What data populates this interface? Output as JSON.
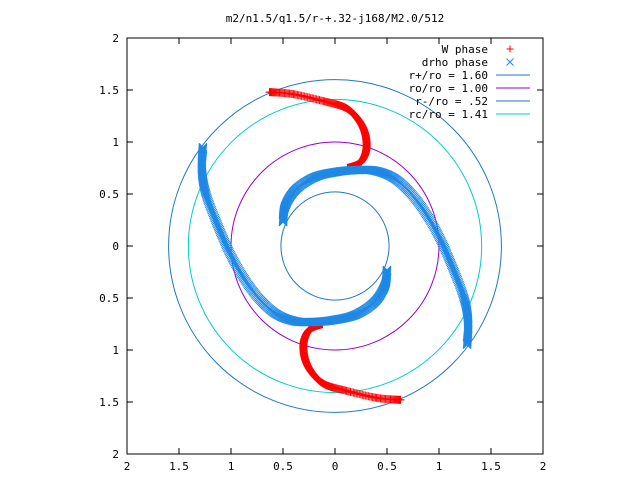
{
  "chart_data": {
    "type": "scatter",
    "title": "m2/n1.5/q1.5/r-+.32-j168/M2.0/512",
    "xlim": [
      -2,
      2
    ],
    "ylim": [
      -2,
      2
    ],
    "x_ticks": [
      -2,
      -1.5,
      -1,
      -0.5,
      0,
      0.5,
      1,
      1.5,
      2
    ],
    "y_ticks": [
      -2,
      -1.5,
      -1,
      -0.5,
      0,
      0.5,
      1,
      1.5,
      2
    ],
    "x_tick_labels": [
      "2",
      "1.5",
      "1",
      "0.5",
      "0",
      "0.5",
      "1",
      "1.5",
      "2"
    ],
    "y_tick_labels": [
      "2",
      "1.5",
      "1",
      "0.5",
      "0",
      "0.5",
      "1",
      "1.5",
      "2"
    ],
    "grid": false,
    "legend_position": "top-right",
    "series": [
      {
        "name": "W phase",
        "kind": "points",
        "marker": "plus",
        "color": "#ff0000",
        "arms": [
          [
            [
              -0.63,
              1.48
            ],
            [
              -0.4,
              1.46
            ],
            [
              -0.1,
              1.39
            ],
            [
              0.1,
              1.33
            ],
            [
              0.22,
              1.22
            ],
            [
              0.29,
              1.08
            ],
            [
              0.3,
              0.92
            ],
            [
              0.24,
              0.8
            ],
            [
              0.12,
              0.75
            ]
          ],
          [
            [
              0.63,
              -1.48
            ],
            [
              0.4,
              -1.46
            ],
            [
              0.1,
              -1.39
            ],
            [
              -0.1,
              -1.33
            ],
            [
              -0.22,
              -1.22
            ],
            [
              -0.29,
              -1.08
            ],
            [
              -0.3,
              -0.92
            ],
            [
              -0.24,
              -0.8
            ],
            [
              -0.12,
              -0.75
            ]
          ]
        ]
      },
      {
        "name": "drho phase",
        "kind": "points",
        "marker": "cross",
        "color": "#1e88e5",
        "arms": [
          [
            [
              -0.5,
              0.23
            ],
            [
              -0.48,
              0.38
            ],
            [
              -0.38,
              0.54
            ],
            [
              -0.2,
              0.66
            ],
            [
              0.0,
              0.71
            ],
            [
              0.2,
              0.73
            ],
            [
              0.4,
              0.72
            ],
            [
              0.6,
              0.63
            ],
            [
              0.8,
              0.42
            ],
            [
              0.98,
              0.13
            ],
            [
              1.12,
              -0.18
            ],
            [
              1.24,
              -0.5
            ],
            [
              1.28,
              -0.73
            ],
            [
              1.27,
              -0.95
            ]
          ],
          [
            [
              0.5,
              -0.23
            ],
            [
              0.48,
              -0.38
            ],
            [
              0.38,
              -0.54
            ],
            [
              0.2,
              -0.66
            ],
            [
              0.0,
              -0.71
            ],
            [
              -0.2,
              -0.73
            ],
            [
              -0.4,
              -0.72
            ],
            [
              -0.6,
              -0.63
            ],
            [
              -0.8,
              -0.42
            ],
            [
              -0.98,
              -0.13
            ],
            [
              -1.12,
              0.18
            ],
            [
              -1.24,
              0.5
            ],
            [
              -1.28,
              0.73
            ],
            [
              -1.27,
              0.95
            ]
          ]
        ]
      },
      {
        "name": "r+/ro = 1.60",
        "kind": "circle",
        "radius": 1.6,
        "color": "#1f77c4"
      },
      {
        "name": "ro/ro = 1.00",
        "kind": "circle",
        "radius": 1.0,
        "color": "#9400d3"
      },
      {
        "name": "r-/ro = .52",
        "kind": "circle",
        "radius": 0.52,
        "color": "#1f77c4"
      },
      {
        "name": "rc/ro = 1.41",
        "kind": "circle",
        "radius": 1.41,
        "color": "#00cccc"
      }
    ]
  }
}
